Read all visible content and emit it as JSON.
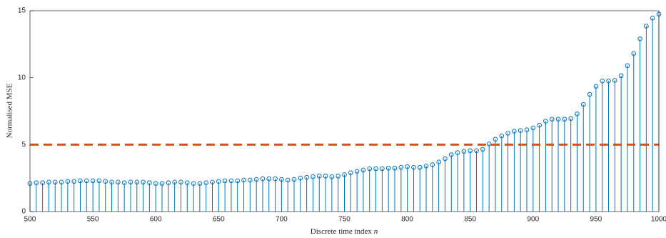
{
  "chart_data": {
    "type": "stem",
    "xlabel": "Discrete time index",
    "xlabel_var": "n",
    "ylabel": "Normalised MSE",
    "x": [
      500,
      505,
      510,
      515,
      520,
      525,
      530,
      535,
      540,
      545,
      550,
      555,
      560,
      565,
      570,
      575,
      580,
      585,
      590,
      595,
      600,
      605,
      610,
      615,
      620,
      625,
      630,
      635,
      640,
      645,
      650,
      655,
      660,
      665,
      670,
      675,
      680,
      685,
      690,
      695,
      700,
      705,
      710,
      715,
      720,
      725,
      730,
      735,
      740,
      745,
      750,
      755,
      760,
      765,
      770,
      775,
      780,
      785,
      790,
      795,
      800,
      805,
      810,
      815,
      820,
      825,
      830,
      835,
      840,
      845,
      850,
      855,
      860,
      865,
      870,
      875,
      880,
      885,
      890,
      895,
      900,
      905,
      910,
      915,
      920,
      925,
      930,
      935,
      940,
      945,
      950,
      955,
      960,
      965,
      970,
      975,
      980,
      985,
      990,
      995,
      1000
    ],
    "values": [
      2.1,
      2.15,
      2.15,
      2.2,
      2.2,
      2.2,
      2.25,
      2.25,
      2.3,
      2.3,
      2.3,
      2.3,
      2.25,
      2.2,
      2.2,
      2.15,
      2.2,
      2.2,
      2.2,
      2.15,
      2.1,
      2.1,
      2.15,
      2.2,
      2.2,
      2.15,
      2.1,
      2.1,
      2.15,
      2.2,
      2.25,
      2.3,
      2.3,
      2.3,
      2.35,
      2.35,
      2.4,
      2.45,
      2.45,
      2.45,
      2.4,
      2.35,
      2.4,
      2.5,
      2.55,
      2.6,
      2.65,
      2.65,
      2.6,
      2.65,
      2.75,
      2.9,
      3.0,
      3.1,
      3.2,
      3.2,
      3.2,
      3.25,
      3.25,
      3.3,
      3.35,
      3.3,
      3.3,
      3.4,
      3.5,
      3.7,
      3.95,
      4.25,
      4.4,
      4.5,
      4.55,
      4.55,
      4.65,
      5.05,
      5.4,
      5.65,
      5.85,
      6.0,
      6.05,
      6.1,
      6.25,
      6.45,
      6.75,
      6.9,
      6.9,
      6.9,
      6.95,
      7.3,
      8.0,
      8.75,
      9.35,
      9.75,
      9.75,
      9.8,
      10.15,
      10.9,
      11.8,
      12.9,
      13.85,
      14.45,
      14.75
    ],
    "color": "#0072bd",
    "reference_line": 5,
    "reference_color": "#d95319",
    "xlim": [
      500,
      1000
    ],
    "xticks": [
      500,
      550,
      600,
      650,
      700,
      750,
      800,
      850,
      900,
      950,
      1000
    ],
    "ylim": [
      0,
      15
    ],
    "yticks": [
      0,
      5,
      10,
      15
    ],
    "grid": false
  }
}
